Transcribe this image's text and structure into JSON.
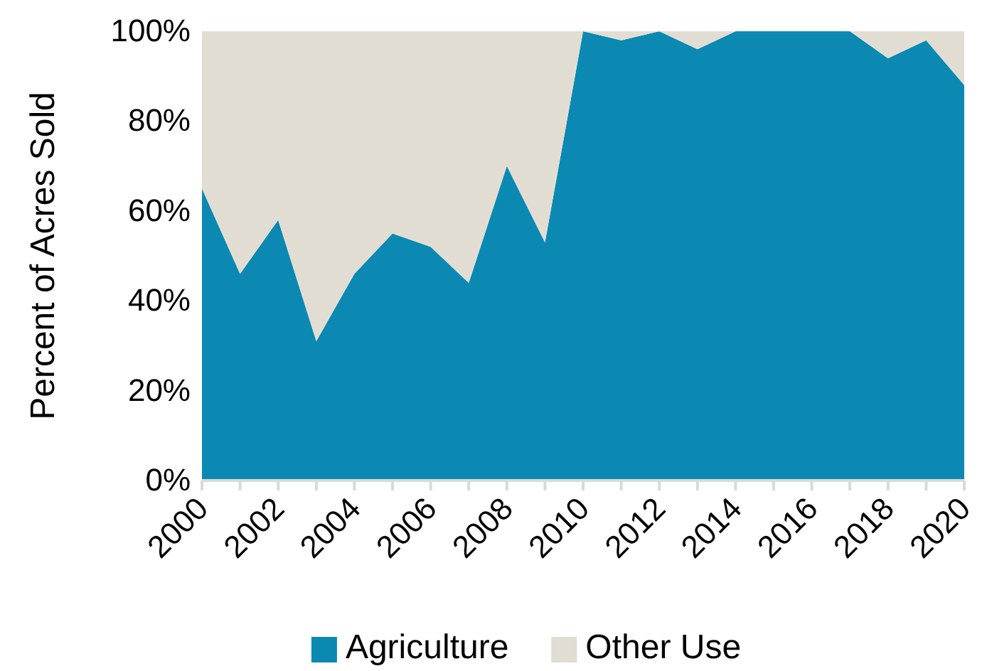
{
  "chart_data": {
    "type": "area",
    "stacked": true,
    "ylabel": "Percent of Acres Sold",
    "x": [
      2000,
      2001,
      2002,
      2003,
      2004,
      2005,
      2006,
      2007,
      2008,
      2009,
      2010,
      2011,
      2012,
      2013,
      2014,
      2015,
      2016,
      2017,
      2018,
      2019,
      2020
    ],
    "series": [
      {
        "name": "Agriculture",
        "color": "#0b89b2",
        "values": [
          65,
          46,
          58,
          31,
          46,
          55,
          52,
          44,
          70,
          53,
          100,
          98,
          100,
          96,
          100,
          100,
          100,
          100,
          94,
          98,
          88
        ]
      },
      {
        "name": "Other Use",
        "color": "#e2ddd2",
        "values": [
          35,
          54,
          42,
          69,
          54,
          45,
          48,
          56,
          30,
          47,
          0,
          2,
          0,
          4,
          0,
          0,
          0,
          0,
          6,
          2,
          12
        ]
      }
    ],
    "xlim": [
      2000,
      2020
    ],
    "xticks": [
      2000,
      {
        "value": 2001,
        "label": null
      },
      2002,
      {
        "value": 2003,
        "label": null
      },
      2004,
      {
        "value": 2005,
        "label": null
      },
      2006,
      {
        "value": 2007,
        "label": null
      },
      2008,
      {
        "value": 2009,
        "label": null
      },
      2010,
      {
        "value": 2011,
        "label": null
      },
      2012,
      {
        "value": 2013,
        "label": null
      },
      2014,
      {
        "value": 2015,
        "label": null
      },
      2016,
      {
        "value": 2017,
        "label": null
      },
      2018,
      {
        "value": 2019,
        "label": null
      },
      2020
    ],
    "ylim": [
      0,
      100
    ],
    "yticks": [
      {
        "value": 0,
        "label": "0%"
      },
      {
        "value": 20,
        "label": "20%"
      },
      {
        "value": 40,
        "label": "40%"
      },
      {
        "value": 60,
        "label": "60%"
      },
      {
        "value": 80,
        "label": "80%"
      },
      {
        "value": 100,
        "label": "100%"
      }
    ],
    "grid": false,
    "legend": "bottom"
  }
}
